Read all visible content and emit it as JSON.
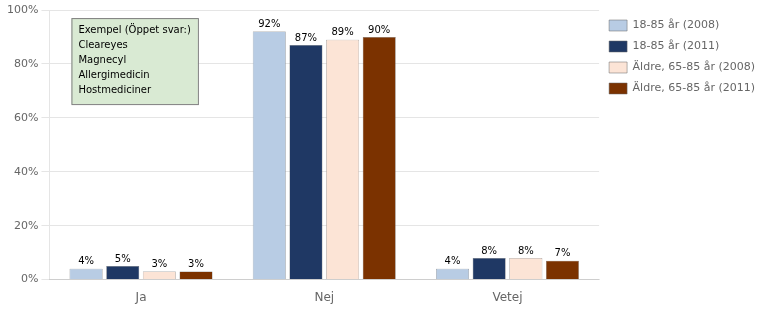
{
  "chart_data": {
    "type": "bar",
    "categories": [
      "Ja",
      "Nej",
      "Vetej"
    ],
    "series": [
      {
        "name": "18-85 år (2008)",
        "color": "#b8cce4",
        "values": [
          4,
          92,
          4
        ],
        "value_labels": [
          "4%",
          "92%",
          "4%"
        ]
      },
      {
        "name": "18-85 år (2011)",
        "color": "#1f3864",
        "values": [
          5,
          87,
          8
        ],
        "value_labels": [
          "5%",
          "87%",
          "8%"
        ]
      },
      {
        "name": "Äldre, 65-85 år (2008)",
        "color": "#fce4d6",
        "values": [
          3,
          89,
          8
        ],
        "value_labels": [
          "3%",
          "89%",
          "8%"
        ]
      },
      {
        "name": "Äldre, 65-85 år (2011)",
        "color": "#7b3200",
        "values": [
          3,
          90,
          7
        ],
        "value_labels": [
          "3%",
          "90%",
          "7%"
        ]
      }
    ],
    "ylim": [
      0,
      100
    ],
    "yticks": [
      {
        "value": 0,
        "label": "0%"
      },
      {
        "value": 20,
        "label": "20%"
      },
      {
        "value": 40,
        "label": "40%"
      },
      {
        "value": 60,
        "label": "60%"
      },
      {
        "value": 80,
        "label": "80%"
      },
      {
        "value": 100,
        "label": "100%"
      }
    ],
    "grid": true,
    "legend": "upper right",
    "data_labels": true,
    "annotation": {
      "title": "Exempel (Öppet svar:)",
      "lines": [
        "Cleareyes",
        "Magnecyl",
        "Allergimedicin",
        "Hostmediciner"
      ]
    }
  }
}
